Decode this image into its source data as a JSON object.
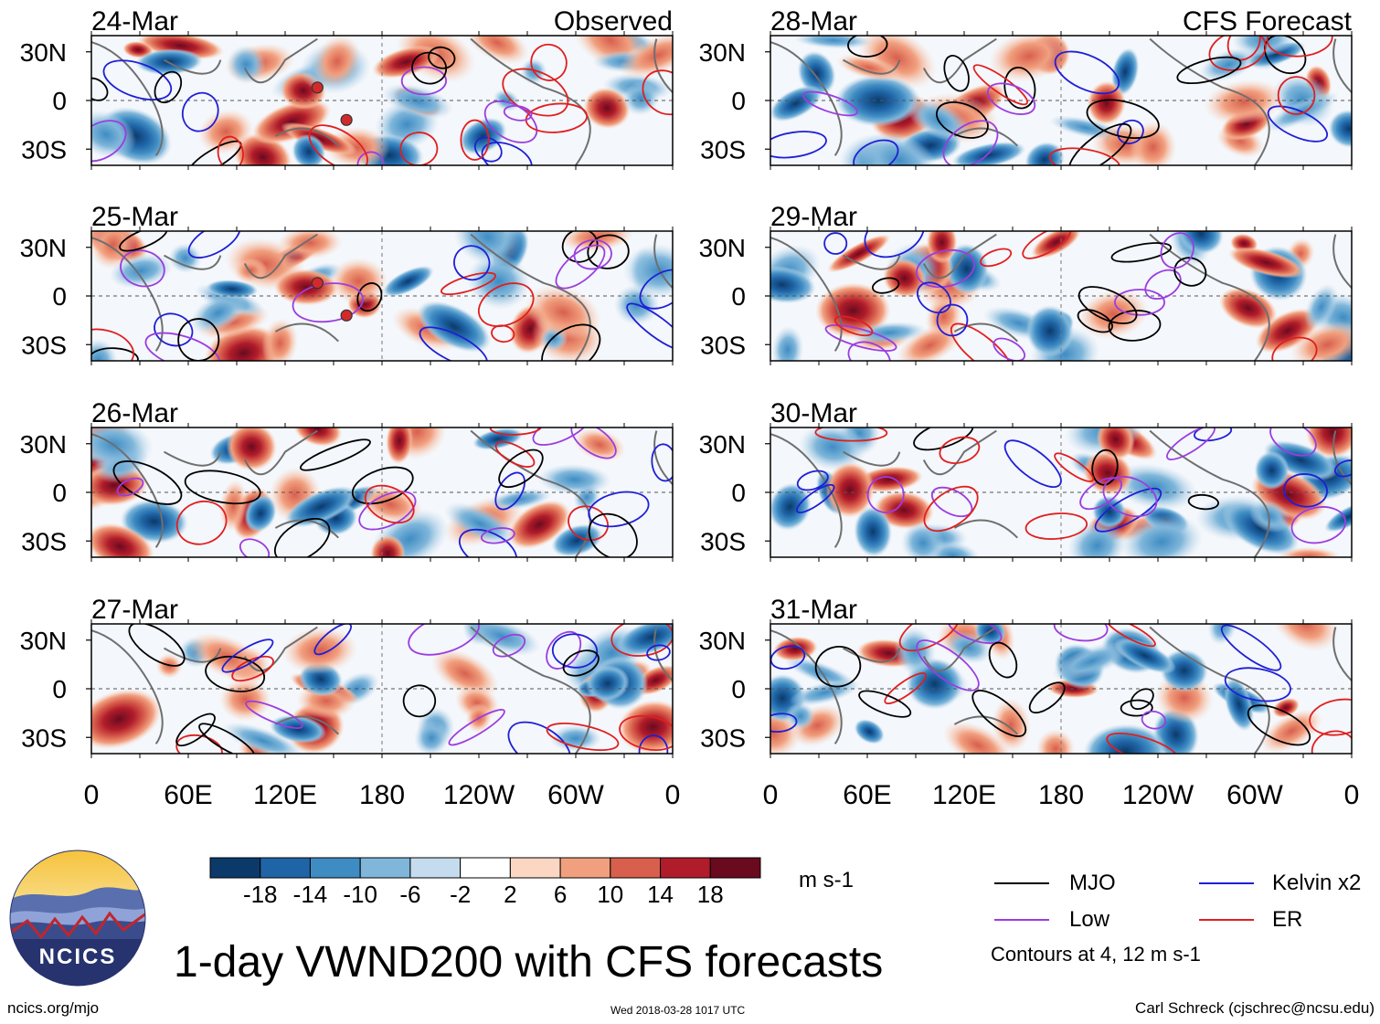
{
  "title": "1-day VWND200 with CFS forecasts",
  "footer": {
    "site": "ncics.org/mjo",
    "timestamp": "Wed 2018-03-28 1017 UTC",
    "author": "Carl Schreck (cjschrec@ncsu.edu)"
  },
  "logo": {
    "text": "NCICS"
  },
  "headers": {
    "observed": "Observed",
    "forecast": "CFS Forecast"
  },
  "panels": {
    "observed": [
      "24-Mar",
      "25-Mar",
      "26-Mar",
      "27-Mar"
    ],
    "forecast": [
      "28-Mar",
      "29-Mar",
      "30-Mar",
      "31-Mar"
    ]
  },
  "chart_data": {
    "type": "heatmap",
    "variable": "VWND200",
    "title": "1-day VWND200 with CFS forecasts",
    "y_ticks": [
      "30N",
      "0",
      "30S"
    ],
    "y_tick_values": [
      30,
      0,
      -30
    ],
    "x_ticks": [
      "0",
      "60E",
      "120E",
      "180",
      "120W",
      "60W",
      "0"
    ],
    "x_tick_values": [
      0,
      60,
      120,
      180,
      240,
      300,
      360
    ],
    "xlim": [
      0,
      360
    ],
    "ylim": [
      -40,
      40
    ],
    "colorbar": {
      "units": "m s-1",
      "levels": [
        -18,
        -14,
        -10,
        -6,
        -2,
        2,
        6,
        10,
        14,
        18
      ],
      "tick_labels": [
        "-18",
        "-14",
        "-10",
        "-6",
        "-2",
        "2",
        "6",
        "10",
        "14",
        "18"
      ],
      "colors": [
        "#0b3a6a",
        "#1f64a6",
        "#3f8cc3",
        "#7fb6da",
        "#c5dcee",
        "#ffffff",
        "#fbd7c3",
        "#f1a07f",
        "#d85f4d",
        "#b11c2a",
        "#6a0a1f"
      ]
    },
    "contours": {
      "note": "Contours at 4, 12 m s-1",
      "levels": [
        4,
        12
      ],
      "series": [
        {
          "name": "MJO",
          "color": "#000000"
        },
        {
          "name": "Kelvin x2",
          "color": "#1f1fd6"
        },
        {
          "name": "Low",
          "color": "#9b3de0"
        },
        {
          "name": "ER",
          "color": "#e01f1f"
        }
      ]
    },
    "tropical_cyclones": [
      {
        "date": "24-Mar",
        "lon": 140,
        "lat": 8
      },
      {
        "date": "24-Mar",
        "lon": 158,
        "lat": -12
      },
      {
        "date": "25-Mar",
        "lon": 140,
        "lat": 8
      },
      {
        "date": "25-Mar",
        "lon": 158,
        "lat": -12
      }
    ],
    "panel_dates": [
      "24-Mar",
      "25-Mar",
      "26-Mar",
      "27-Mar",
      "28-Mar",
      "29-Mar",
      "30-Mar",
      "31-Mar"
    ]
  }
}
